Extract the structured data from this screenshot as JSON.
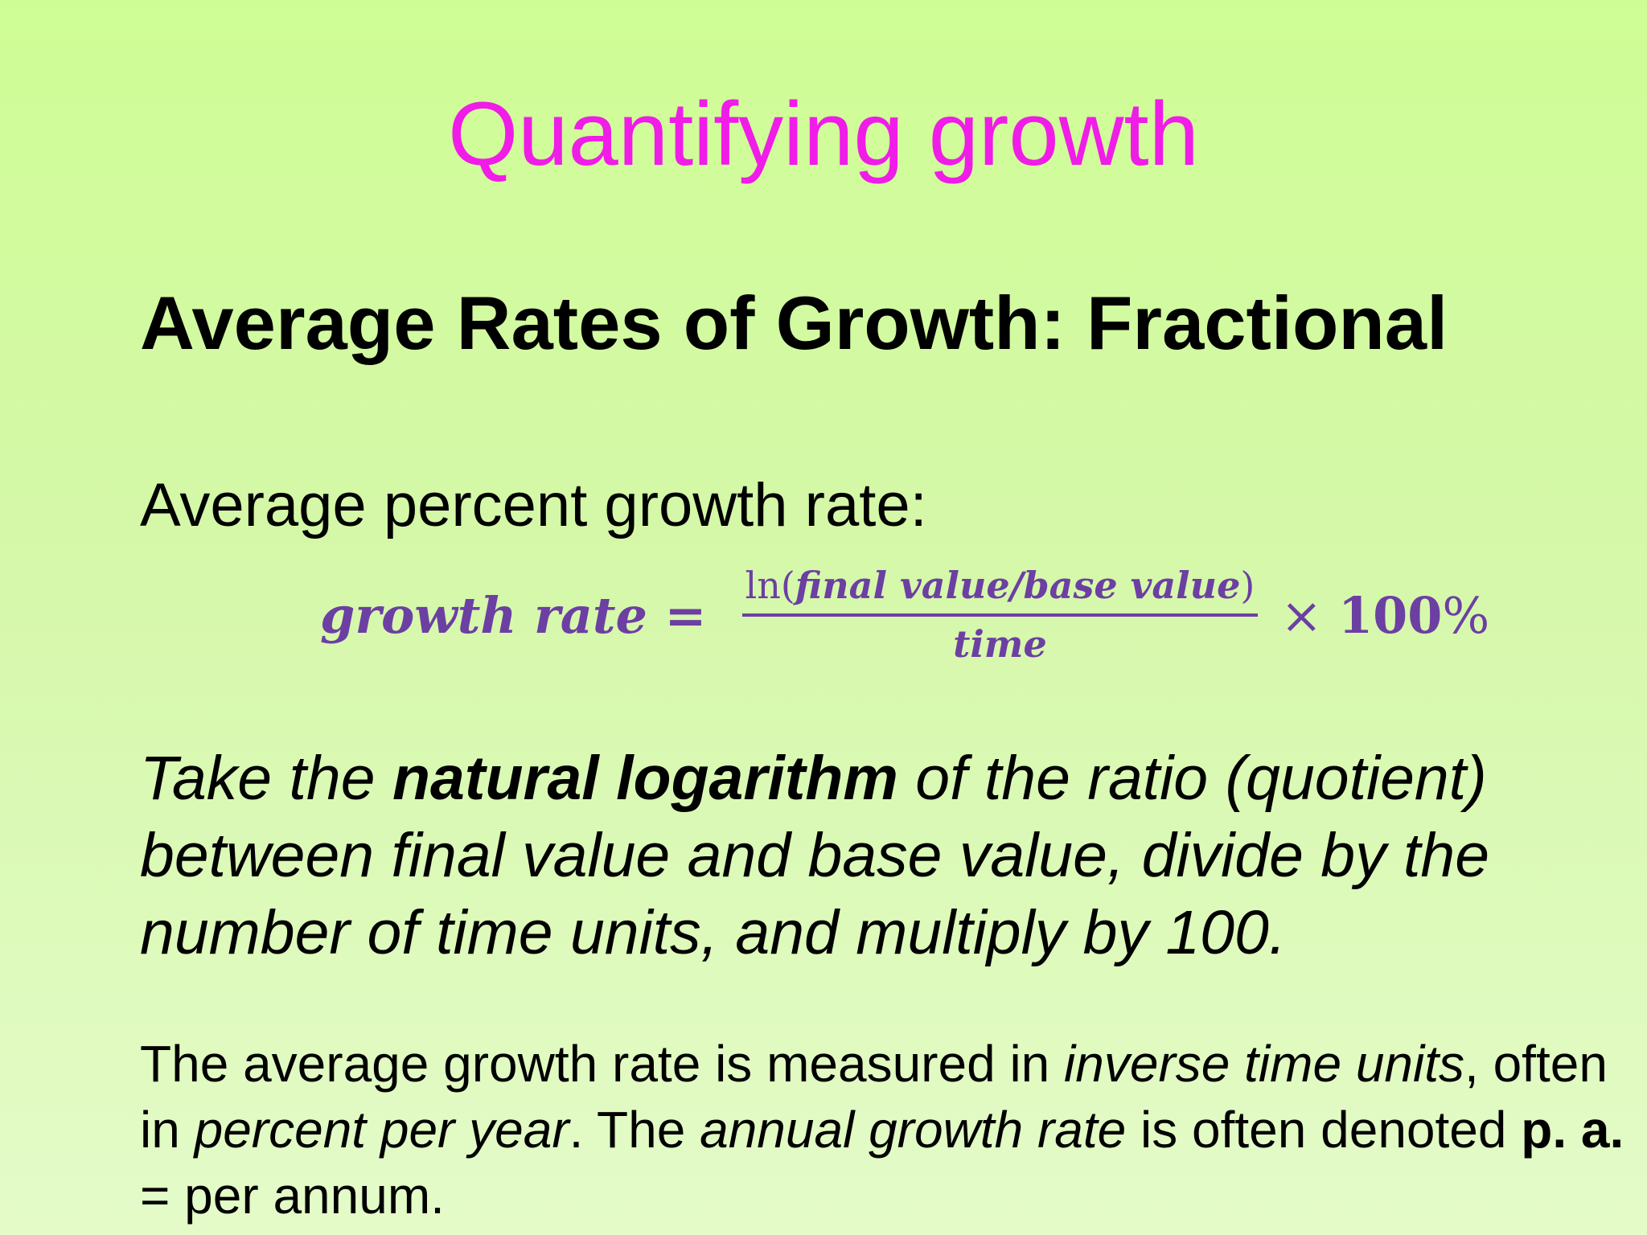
{
  "slide": {
    "title": "Quantifying growth",
    "subtitle": "Average Rates of Growth: Fractional",
    "formula_label": "Average percent growth rate:",
    "formula": {
      "lhs": "growth rate =",
      "numerator_fn": "ln(",
      "numerator_vars": "final value/base value",
      "numerator_close": ")",
      "denominator": "time",
      "times": "× ",
      "multiplier": "100",
      "percent": "%"
    },
    "explanation": {
      "part1": "Take the ",
      "bold": "natural logarithm",
      "part2": " of the ratio (quotient) between final value and base value, divide by the number of time units, and multiply by 100."
    },
    "note": {
      "t1": "The average growth rate is measured in ",
      "i1": "inverse time units",
      "t2": ", often in ",
      "i2": "percent per year",
      "t3": ". The ",
      "i3": "annual growth rate",
      "t4": " is often denoted ",
      "b1": "p. a.",
      "t5": " = per annum."
    },
    "colors": {
      "title": "#f01ce7",
      "formula": "#6c3fa3",
      "background_top": "#cffd95",
      "background_bottom": "#e4fbc9"
    }
  }
}
